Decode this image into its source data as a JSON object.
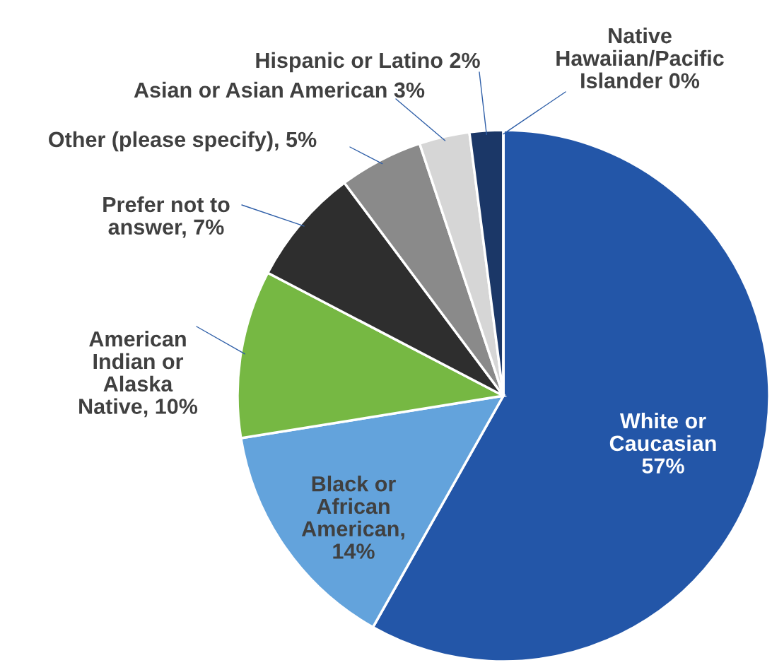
{
  "chart_data": {
    "type": "pie",
    "categories": [
      "White or\nCaucasian\n57%",
      "Black or\nAfrican\nAmerican,\n14%",
      "American\nIndian or\nAlaska\nNative, 10%",
      "Prefer not to\nanswer, 7%",
      "Other (please specify), 5%",
      "Asian or Asian American 3%",
      "Hispanic or Latino 2%",
      "Native\nHawaiian/Pacific\nIslander 0%"
    ],
    "values": [
      57,
      14,
      10,
      7,
      5,
      3,
      2,
      0
    ],
    "colors": [
      "#2356a8",
      "#63a3dc",
      "#76b843",
      "#2e2e2e",
      "#8a8a8a",
      "#d6d6d6",
      "#1b3767",
      "#2a5aa8"
    ],
    "legend": false
  }
}
